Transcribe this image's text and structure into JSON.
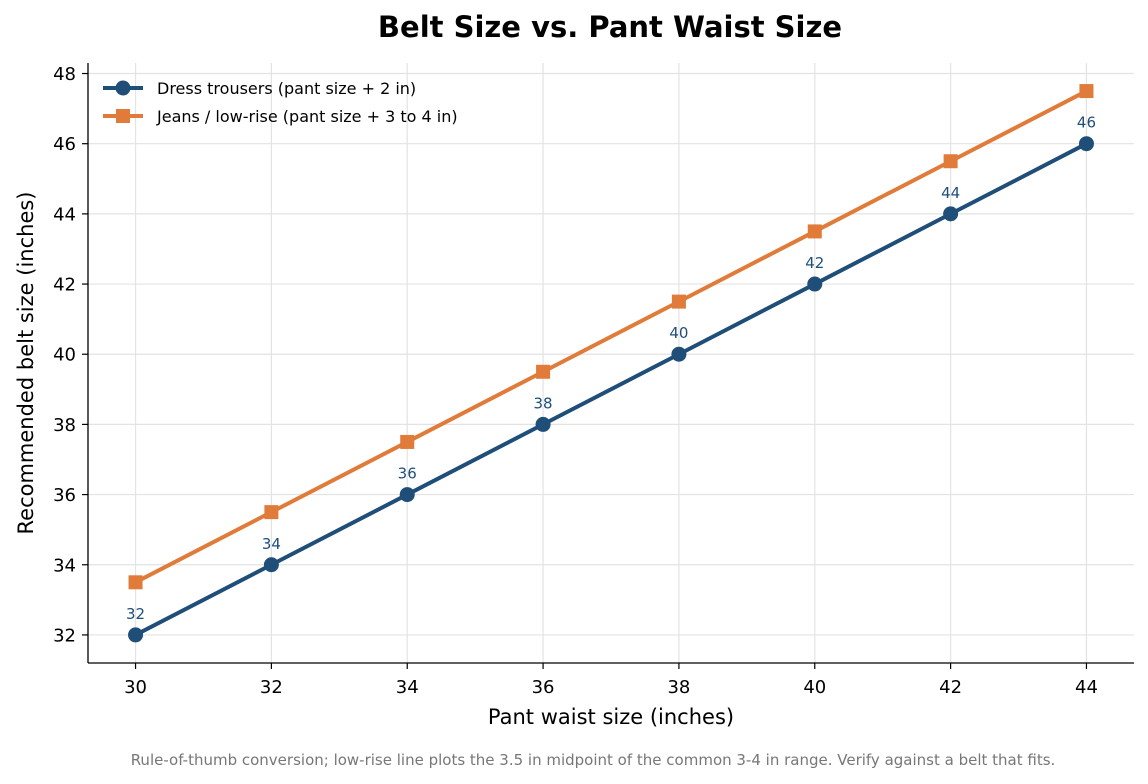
{
  "chart_data": {
    "type": "line",
    "title": "Belt Size vs. Pant Waist Size",
    "xlabel": "Pant waist size (inches)",
    "ylabel": "Recommended belt size (inches)",
    "caption": "Rule-of-thumb conversion; low-rise line plots the 3.5 in midpoint of the common 3-4 in range. Verify against a belt that fits.",
    "x": [
      30,
      32,
      34,
      36,
      38,
      40,
      42,
      44
    ],
    "xlim": [
      29.3,
      44.7
    ],
    "ylim": [
      31.2,
      48.3
    ],
    "xticks": [
      30,
      32,
      34,
      36,
      38,
      40,
      42,
      44
    ],
    "yticks": [
      32,
      34,
      36,
      38,
      40,
      42,
      44,
      46,
      48
    ],
    "grid": true,
    "legend_position": "top-left",
    "series": [
      {
        "name": "Dress trousers (pant size + 2 in)",
        "values": [
          32,
          34,
          36,
          38,
          40,
          42,
          44,
          46
        ],
        "color": "#1f4e79",
        "marker": "circle",
        "data_labels": [
          "32",
          "34",
          "36",
          "38",
          "40",
          "42",
          "44",
          "46"
        ]
      },
      {
        "name": "Jeans / low-rise (pant size + 3 to 4 in)",
        "values": [
          33.5,
          35.5,
          37.5,
          39.5,
          41.5,
          43.5,
          45.5,
          47.5
        ],
        "color": "#e07b39",
        "marker": "square"
      }
    ]
  }
}
